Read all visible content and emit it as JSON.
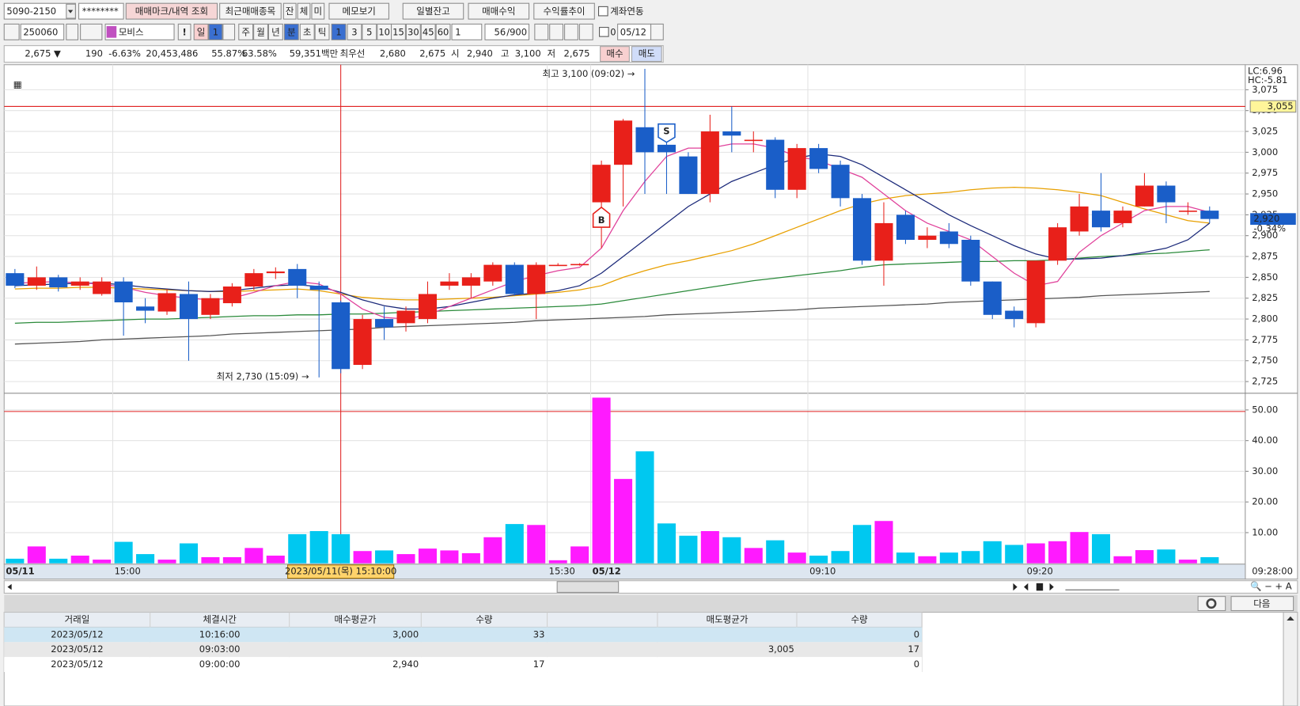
{
  "toolbar": {
    "account": "5090-2150",
    "password": "********",
    "buttons": [
      "매매마크/내역 조회",
      "최근매매종목",
      "잔",
      "체",
      "미",
      "메모보기",
      "일별잔고",
      "매매수익",
      "수익률추이"
    ],
    "link_account": "계좌연동"
  },
  "toolbar2": {
    "code": "250060",
    "stock_name": "모비스",
    "warn": "!",
    "period_types": [
      "일",
      "1",
      "주",
      "월",
      "년",
      "분",
      "초",
      "틱"
    ],
    "intervals": [
      "1",
      "3",
      "5",
      "10",
      "15",
      "30",
      "45",
      "60"
    ],
    "multiplier": "1",
    "count": "56",
    "max_count": "/900",
    "check_value": "0",
    "date": "05/12"
  },
  "quote": {
    "price": "2,675 ▼",
    "change": "190",
    "change_rate": "-6.63%",
    "volume": "20,453,486",
    "ratio1": "55.87%",
    "ratio2": "63.58%",
    "amount": "59,351백만",
    "best_label": "최우선",
    "ask": "2,680",
    "bid": "2,675",
    "open_label": "시",
    "open": "2,940",
    "high_label": "고",
    "high": "3,100",
    "low_label": "저",
    "low": "2,675",
    "buy": "매수",
    "sell": "매도"
  },
  "chart_data": {
    "type": "candlestick",
    "categories": [
      "05/11",
      null,
      null,
      null,
      null,
      "15:00",
      null,
      null,
      null,
      null,
      null,
      null,
      null,
      null,
      null,
      null,
      null,
      null,
      null,
      null,
      null,
      null,
      null,
      null,
      null,
      "15:30",
      null,
      "05/12",
      null,
      null,
      null,
      null,
      null,
      null,
      null,
      null,
      null,
      "09:10",
      null,
      null,
      null,
      null,
      null,
      null,
      null,
      null,
      null,
      "09:20",
      null,
      null,
      null,
      null,
      null,
      null,
      null,
      null
    ],
    "open": [
      2855,
      2840,
      2850,
      2840,
      2830,
      2845,
      2815,
      2809,
      2830,
      2805,
      2819,
      2839,
      2855,
      2860,
      2840,
      2820,
      2745,
      2800,
      2795,
      2800,
      2840,
      2840,
      2845,
      2865,
      2830,
      2865,
      2865,
      2940,
      2985,
      3030,
      3009,
      2995,
      2950,
      3025,
      3015,
      3015,
      2955,
      3005,
      2985,
      2945,
      2870,
      2925,
      2895,
      2905,
      2895,
      2845,
      2810,
      2795,
      2870,
      2905,
      2930,
      2915,
      2935,
      2960,
      2930,
      2930
    ],
    "high": [
      2860,
      2863,
      2853,
      2850,
      2850,
      2850,
      2825,
      2836,
      2845,
      2830,
      2843,
      2860,
      2862,
      2866,
      2845,
      2822,
      2805,
      2815,
      2815,
      2845,
      2855,
      2855,
      2868,
      2868,
      2868,
      2867,
      2867,
      2990,
      3040,
      3100,
      3020,
      3000,
      3045,
      3055,
      3025,
      3018,
      3010,
      3010,
      2990,
      2950,
      2940,
      2930,
      2910,
      2915,
      2900,
      2845,
      2815,
      2870,
      2915,
      2950,
      2975,
      2935,
      2975,
      2965,
      2940,
      2935
    ],
    "low": [
      2837,
      2835,
      2833,
      2835,
      2828,
      2780,
      2795,
      2805,
      2750,
      2800,
      2815,
      2835,
      2848,
      2825,
      2730,
      2735,
      2740,
      2775,
      2785,
      2795,
      2835,
      2825,
      2840,
      2828,
      2800,
      2864,
      2864,
      2885,
      2935,
      2950,
      2950,
      2950,
      2940,
      3000,
      3000,
      2945,
      2945,
      2975,
      2935,
      2865,
      2840,
      2890,
      2885,
      2885,
      2840,
      2800,
      2790,
      2790,
      2865,
      2900,
      2905,
      2910,
      2935,
      2915,
      2925,
      2915
    ],
    "close": [
      2840,
      2850,
      2838,
      2845,
      2845,
      2820,
      2810,
      2831,
      2800,
      2825,
      2839,
      2855,
      2857,
      2840,
      2835,
      2740,
      2800,
      2790,
      2810,
      2830,
      2845,
      2850,
      2865,
      2830,
      2865,
      2865,
      2866,
      2985,
      3038,
      3000,
      3000,
      2950,
      3025,
      3020,
      3015,
      2955,
      3005,
      2980,
      2945,
      2870,
      2915,
      2895,
      2900,
      2890,
      2845,
      2805,
      2800,
      2870,
      2910,
      2935,
      2910,
      2930,
      2960,
      2940,
      2930,
      2920
    ],
    "volume": [
      1.5,
      5.5,
      1.5,
      2.5,
      1.2,
      7,
      3,
      1.2,
      6.5,
      2,
      2,
      5,
      2.5,
      9.5,
      10.5,
      9.5,
      4,
      4.2,
      3,
      4.8,
      4.2,
      3.3,
      8.5,
      12.8,
      12.5,
      1,
      5.5,
      54,
      27.5,
      36.5,
      13,
      9,
      10.5,
      8.5,
      5,
      7.5,
      3.5,
      2.5,
      4,
      12.5,
      13.8,
      3.5,
      2.3,
      3.5,
      4,
      7.2,
      6,
      6.5,
      7.2,
      10.2,
      9.5,
      2.3,
      4.3,
      4.5,
      1.2,
      2
    ],
    "up_color": "#e8201a",
    "down_color": "#1a5ec8",
    "up_volume_color": "#ff1aff",
    "down_volume_color": "#00c8f0",
    "ma_lines": [
      {
        "color": "#555555",
        "values": [
          2770,
          2771,
          2772,
          2773,
          2775,
          2776,
          2777,
          2778,
          2779,
          2780,
          2782,
          2783,
          2784,
          2785,
          2786,
          2787,
          2788,
          2790,
          2791,
          2792,
          2793,
          2794,
          2795,
          2796,
          2798,
          2799,
          2800,
          2801,
          2802,
          2803,
          2805,
          2806,
          2807,
          2808,
          2809,
          2810,
          2811,
          2813,
          2814,
          2815,
          2816,
          2817,
          2818,
          2820,
          2821,
          2822,
          2823,
          2824,
          2825,
          2826,
          2828,
          2829,
          2830,
          2831,
          2832,
          2833
        ]
      },
      {
        "color": "#2a8a3a",
        "values": [
          2795,
          2796,
          2796,
          2797,
          2798,
          2799,
          2800,
          2800,
          2801,
          2802,
          2803,
          2804,
          2804,
          2805,
          2805,
          2806,
          2806,
          2807,
          2808,
          2809,
          2810,
          2811,
          2812,
          2813,
          2814,
          2815,
          2816,
          2818,
          2822,
          2826,
          2830,
          2834,
          2838,
          2842,
          2846,
          2849,
          2852,
          2855,
          2858,
          2862,
          2865,
          2866,
          2867,
          2868,
          2869,
          2869,
          2870,
          2870,
          2871,
          2873,
          2875,
          2876,
          2878,
          2879,
          2881,
          2883
        ]
      },
      {
        "color": "#e8a000",
        "values": [
          2836,
          2837,
          2837,
          2838,
          2838,
          2837,
          2836,
          2835,
          2834,
          2833,
          2833,
          2834,
          2835,
          2836,
          2834,
          2830,
          2826,
          2824,
          2823,
          2823,
          2824,
          2825,
          2826,
          2828,
          2830,
          2832,
          2835,
          2840,
          2850,
          2858,
          2865,
          2870,
          2876,
          2882,
          2890,
          2900,
          2910,
          2920,
          2930,
          2938,
          2944,
          2948,
          2950,
          2952,
          2955,
          2957,
          2958,
          2957,
          2955,
          2952,
          2948,
          2940,
          2932,
          2925,
          2918,
          2915
        ]
      },
      {
        "color": "#1c2a7a",
        "values": [
          2840,
          2841,
          2842,
          2843,
          2843,
          2841,
          2838,
          2836,
          2834,
          2833,
          2834,
          2837,
          2840,
          2841,
          2839,
          2832,
          2823,
          2816,
          2812,
          2812,
          2815,
          2820,
          2825,
          2829,
          2831,
          2834,
          2840,
          2855,
          2875,
          2895,
          2915,
          2935,
          2950,
          2965,
          2975,
          2985,
          2993,
          2998,
          2995,
          2985,
          2970,
          2955,
          2940,
          2925,
          2912,
          2900,
          2888,
          2878,
          2872,
          2872,
          2873,
          2876,
          2880,
          2885,
          2895,
          2915
        ]
      },
      {
        "color": "#e0409a",
        "values": [
          2843,
          2844,
          2845,
          2843,
          2842,
          2838,
          2832,
          2828,
          2825,
          2823,
          2825,
          2832,
          2840,
          2845,
          2842,
          2830,
          2812,
          2802,
          2800,
          2805,
          2815,
          2825,
          2835,
          2845,
          2852,
          2858,
          2862,
          2885,
          2930,
          2965,
          2995,
          3005,
          3005,
          3010,
          3010,
          3005,
          2995,
          2990,
          2980,
          2970,
          2950,
          2930,
          2915,
          2905,
          2895,
          2875,
          2855,
          2840,
          2845,
          2880,
          2900,
          2915,
          2930,
          2935,
          2935,
          2928
        ]
      }
    ],
    "ylim": [
      2712,
      3105
    ],
    "yticks": [
      {
        "value": 2725,
        "label": "2,725"
      },
      {
        "value": 2750,
        "label": "2,750"
      },
      {
        "value": 2775,
        "label": "2,775"
      },
      {
        "value": 2800,
        "label": "2,800"
      },
      {
        "value": 2825,
        "label": "2,825"
      },
      {
        "value": 2850,
        "label": "2,850"
      },
      {
        "value": 2875,
        "label": "2,875"
      },
      {
        "value": 2900,
        "label": "2,900"
      },
      {
        "value": 2925,
        "label": "2,925"
      },
      {
        "value": 2950,
        "label": "2,950"
      },
      {
        "value": 2975,
        "label": "2,975"
      },
      {
        "value": 3000,
        "label": "3,000"
      },
      {
        "value": 3025,
        "label": "3,025"
      },
      {
        "value": 3050,
        "label": "3,050"
      },
      {
        "value": 3075,
        "label": "3,075"
      }
    ],
    "volume_ylim": [
      0,
      54.9
    ],
    "volume_yticks": [
      {
        "value": 10,
        "label": "10.00"
      },
      {
        "value": 20,
        "label": "20.00"
      },
      {
        "value": 30,
        "label": "30.00"
      },
      {
        "value": 40,
        "label": "40.00"
      },
      {
        "value": 50,
        "label": "50.00"
      }
    ],
    "grid": true,
    "markers": [
      {
        "label": "B",
        "index": 27
      },
      {
        "label": "S",
        "index": 30
      }
    ],
    "high_annotation": "최고 3,100 (09:02) →",
    "high_index": 29,
    "low_annotation": "최저 2,730 (15:09) →",
    "low_index": 14,
    "lc": "LC:6.96",
    "hc": "HC:-5.81",
    "crosshair": {
      "index": 15,
      "label": "2023/05/11(목) 15:10:00",
      "price": {
        "value": 3055,
        "label": "3,055"
      },
      "volume": 49.5
    },
    "current": {
      "value": 2920,
      "label": "2,920"
    },
    "current_change": "-0.34%",
    "last_time": "09:28:00"
  },
  "table": {
    "headers": [
      "거래일",
      "체결시간",
      "매수평균가",
      "수량",
      "매도평균가",
      "수량"
    ],
    "rows": [
      [
        "2023/05/12",
        "10:16:00",
        "3,000",
        "33",
        null,
        "0"
      ],
      [
        "2023/05/12",
        "09:03:00",
        null,
        null,
        "3,005",
        "17"
      ],
      [
        "2023/05/12",
        "09:00:00",
        "2,940",
        "17",
        null,
        "0"
      ]
    ]
  },
  "next_button": "다음"
}
